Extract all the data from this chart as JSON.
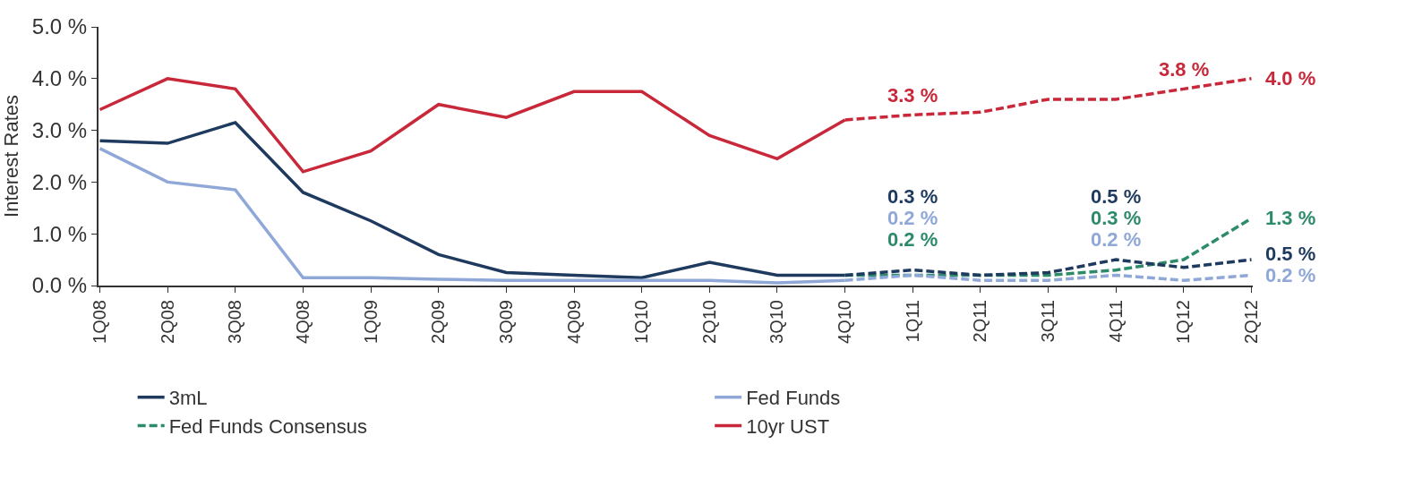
{
  "chart_data": {
    "type": "line",
    "ylabel": "Interest Rates",
    "categories": [
      "1Q08",
      "2Q08",
      "3Q08",
      "4Q08",
      "1Q09",
      "2Q09",
      "3Q09",
      "4Q09",
      "1Q10",
      "2Q10",
      "3Q10",
      "4Q10",
      "1Q11",
      "2Q11",
      "3Q11",
      "4Q11",
      "1Q12",
      "2Q12"
    ],
    "ylim": [
      0,
      5
    ],
    "yticks": [
      {
        "value": 0,
        "label": "0.0 %"
      },
      {
        "value": 1,
        "label": "1.0 %"
      },
      {
        "value": 2,
        "label": "2.0 %"
      },
      {
        "value": 3,
        "label": "3.0 %"
      },
      {
        "value": 4,
        "label": "4.0 %"
      },
      {
        "value": 5,
        "label": "5.0 %"
      }
    ],
    "grid": false,
    "legend": "bottom",
    "marker": "none",
    "series": [
      {
        "name": "3mL",
        "color": "#1f3a5f",
        "line_style": "solid",
        "values": [
          2.8,
          2.75,
          3.15,
          1.8,
          1.25,
          0.6,
          0.25,
          0.2,
          0.15,
          0.45,
          0.2,
          0.2,
          null,
          null,
          null,
          null,
          null,
          null
        ]
      },
      {
        "name": "Fed Funds",
        "color": "#8fa8d8",
        "line_style": "solid",
        "values": [
          2.65,
          2.0,
          1.85,
          0.15,
          0.15,
          0.12,
          0.1,
          0.1,
          0.1,
          0.1,
          0.05,
          0.1,
          null,
          null,
          null,
          null,
          null,
          null
        ]
      },
      {
        "name": "Fed Funds Consensus",
        "color": "#2e8b6a",
        "line_style": "dashed",
        "values": [
          null,
          null,
          null,
          null,
          null,
          null,
          null,
          null,
          null,
          null,
          null,
          0.2,
          0.2,
          0.2,
          0.2,
          0.3,
          0.5,
          1.3
        ],
        "value_labels": [
          null,
          null,
          null,
          null,
          null,
          null,
          null,
          null,
          null,
          null,
          null,
          null,
          "0.2 %",
          null,
          null,
          "0.3 %",
          null,
          "1.3 %"
        ]
      },
      {
        "name": "10yr UST",
        "color": "#c8283a",
        "line_style": "solid",
        "values": [
          3.4,
          4.0,
          3.8,
          2.2,
          2.6,
          3.5,
          3.25,
          3.75,
          3.75,
          2.9,
          2.45,
          3.2,
          null,
          null,
          null,
          null,
          null,
          null
        ]
      },
      {
        "color": "#1f3a5f",
        "line_style": "dashed",
        "values": [
          null,
          null,
          null,
          null,
          null,
          null,
          null,
          null,
          null,
          null,
          null,
          0.2,
          0.3,
          0.2,
          0.25,
          0.5,
          0.35,
          0.5
        ],
        "value_labels": [
          null,
          null,
          null,
          null,
          null,
          null,
          null,
          null,
          null,
          null,
          null,
          null,
          "0.3 %",
          null,
          null,
          "0.5 %",
          null,
          "0.5 %"
        ]
      },
      {
        "color": "#8fa8d8",
        "line_style": "dashed",
        "values": [
          null,
          null,
          null,
          null,
          null,
          null,
          null,
          null,
          null,
          null,
          null,
          0.1,
          0.2,
          0.1,
          0.1,
          0.2,
          0.1,
          0.2
        ],
        "value_labels": [
          null,
          null,
          null,
          null,
          null,
          null,
          null,
          null,
          null,
          null,
          null,
          null,
          "0.2 %",
          null,
          null,
          "0.2 %",
          null,
          "0.2 %"
        ]
      },
      {
        "color": "#c8283a",
        "line_style": "dashed",
        "values": [
          null,
          null,
          null,
          null,
          null,
          null,
          null,
          null,
          null,
          null,
          null,
          3.2,
          3.3,
          3.35,
          3.6,
          3.6,
          3.8,
          4.0
        ],
        "value_labels": [
          null,
          null,
          null,
          null,
          null,
          null,
          null,
          null,
          null,
          null,
          null,
          null,
          "3.3 %",
          null,
          null,
          null,
          "3.8 %",
          "4.0 %"
        ]
      }
    ]
  }
}
